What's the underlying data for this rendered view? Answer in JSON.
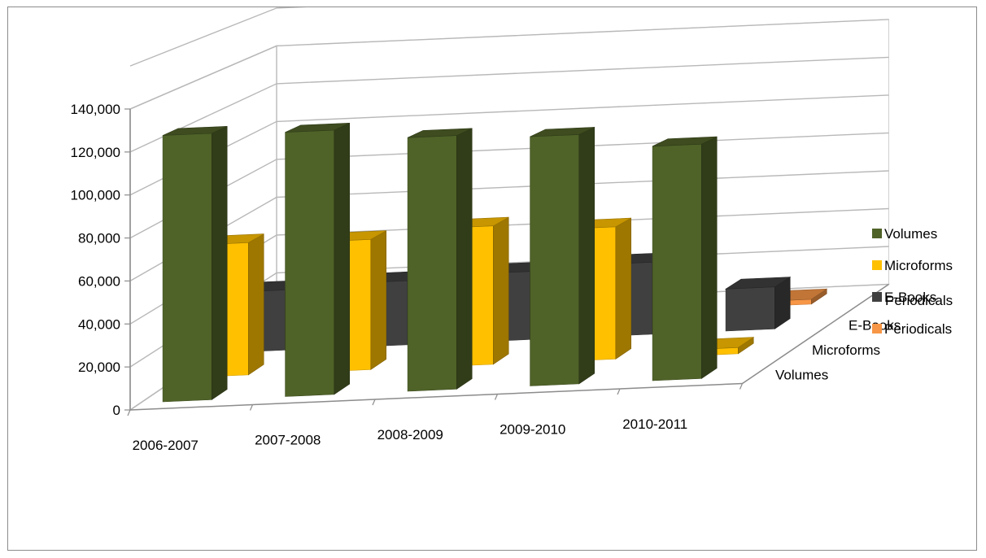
{
  "chart_data": {
    "type": "bar",
    "subtype": "3d-column",
    "title": "",
    "xlabel": "",
    "ylabel": "",
    "categories": [
      "2006-2007",
      "2007-2008",
      "2008-2009",
      "2009-2010",
      "2010-2011"
    ],
    "ylim": [
      0,
      140000
    ],
    "y_ticks": [
      "0",
      "20,000",
      "40,000",
      "60,000",
      "80,000",
      "100,000",
      "120,000",
      "140,000"
    ],
    "depth_labels": [
      "Volumes",
      "Microforms",
      "E-Books",
      "Periodicals"
    ],
    "series": [
      {
        "name": "Volumes",
        "color": "#4f6228",
        "values": [
          125000,
          124000,
          119000,
          117000,
          110000
        ]
      },
      {
        "name": "Microforms",
        "color": "#ffc000",
        "values": [
          64000,
          63000,
          67000,
          64000,
          3000
        ]
      },
      {
        "name": "E-Books",
        "color": "#404040",
        "values": [
          30000,
          32000,
          34000,
          36000,
          21000
        ]
      },
      {
        "name": "Periodicals",
        "color": "#f79646",
        "values": [
          0,
          0,
          0,
          0,
          2500
        ]
      }
    ],
    "grid": true,
    "legend_position": "right"
  }
}
